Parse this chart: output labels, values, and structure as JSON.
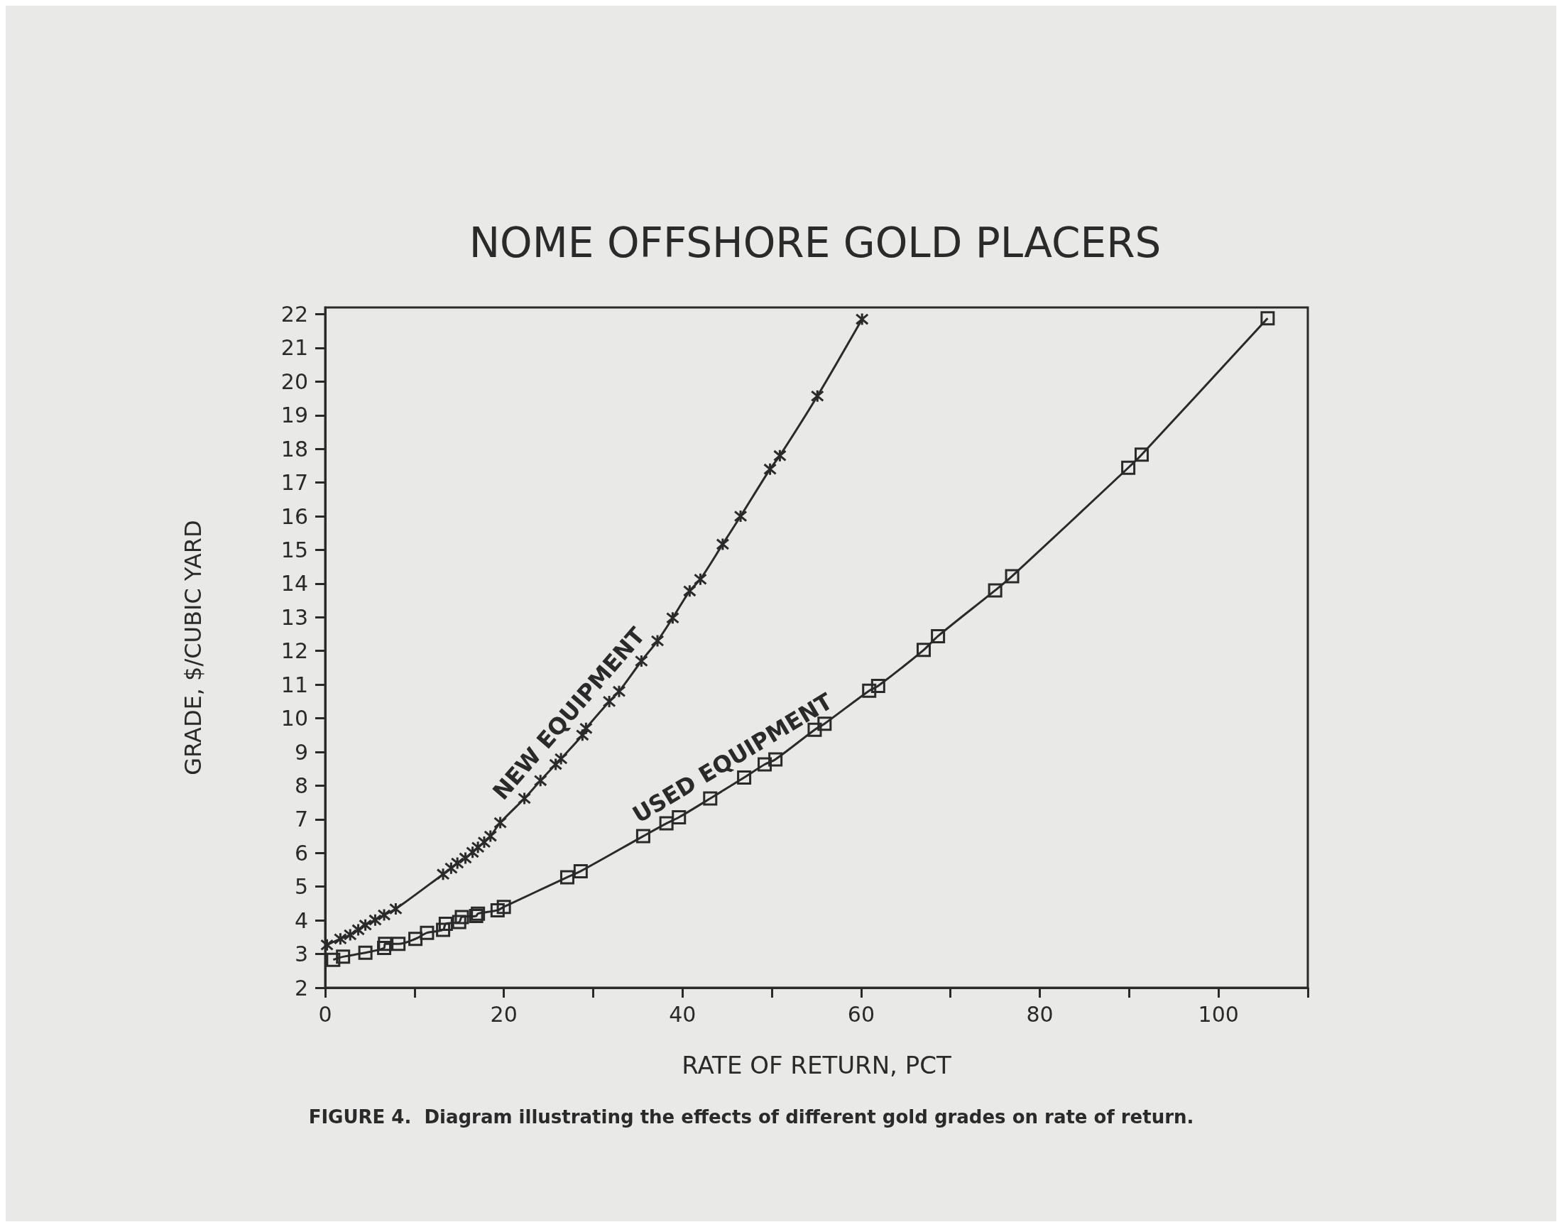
{
  "chart_data": {
    "type": "line",
    "title": "NOME OFFSHORE GOLD PLACERS",
    "xlabel": "RATE OF RETURN, PCT",
    "ylabel": "GRADE, $/CUBIC YARD",
    "annotations": [
      "FIGURE 4.  Diagram illustrating the effects of different gold grades on rate of return."
    ],
    "xlim": [
      0,
      110
    ],
    "xticks": [
      0,
      {
        "value": 10,
        "label": null
      },
      20,
      {
        "value": 30,
        "label": null
      },
      40,
      {
        "value": 50,
        "label": null
      },
      60,
      {
        "value": 70,
        "label": null
      },
      80,
      {
        "value": 90,
        "label": null
      },
      100,
      {
        "value": 110,
        "label": null
      }
    ],
    "ylim": [
      2,
      22.2
    ],
    "yticks": [
      2,
      3,
      4,
      5,
      6,
      7,
      8,
      9,
      10,
      11,
      12,
      13,
      14,
      15,
      16,
      17,
      18,
      19,
      20,
      21,
      22
    ],
    "grid": false,
    "legend": false,
    "line_style": "solid",
    "series": [
      {
        "name": "NEW EQUIPMENT",
        "color": "#2a2a2a",
        "marker": "cross",
        "x": [
          0.2,
          1.7,
          2.8,
          3.7,
          4.5,
          5.6,
          6.6,
          7.9,
          13.2,
          14.1,
          14.8,
          15.7,
          16.5,
          17.1,
          17.8,
          18.5,
          19.6,
          22.3,
          24.1,
          25.8,
          26.4,
          28.8,
          29.2,
          31.8,
          32.9,
          35.4,
          37.2,
          38.9,
          40.8,
          42.0,
          44.5,
          46.5,
          49.8,
          50.9,
          55.1,
          60.1
        ],
        "values": [
          3.27,
          3.45,
          3.57,
          3.72,
          3.86,
          4.01,
          4.16,
          4.34,
          5.37,
          5.55,
          5.7,
          5.85,
          6.02,
          6.17,
          6.32,
          6.5,
          6.9,
          7.62,
          8.15,
          8.63,
          8.8,
          9.5,
          9.7,
          10.5,
          10.8,
          11.7,
          12.3,
          12.98,
          13.78,
          14.13,
          15.17,
          16.0,
          17.4,
          17.8,
          19.57,
          21.85
        ]
      },
      {
        "name": "USED EQUIPMENT",
        "color": "#2a2a2a",
        "marker": "square",
        "x": [
          0.9,
          2.0,
          4.5,
          6.6,
          6.7,
          8.2,
          10.1,
          11.4,
          13.2,
          13.5,
          15.0,
          15.3,
          16.9,
          17.1,
          19.3,
          20.0,
          27.1,
          28.6,
          35.6,
          38.2,
          39.6,
          43.1,
          46.9,
          49.2,
          50.4,
          54.8,
          55.9,
          60.9,
          61.9,
          67.0,
          68.6,
          75.0,
          76.9,
          89.9,
          91.4,
          105.5
        ],
        "values": [
          2.83,
          2.92,
          3.04,
          3.18,
          3.3,
          3.3,
          3.45,
          3.63,
          3.72,
          3.9,
          3.95,
          4.1,
          4.13,
          4.2,
          4.3,
          4.4,
          5.28,
          5.46,
          6.5,
          6.88,
          7.06,
          7.62,
          8.24,
          8.63,
          8.78,
          9.66,
          9.84,
          10.82,
          10.96,
          12.03,
          12.44,
          13.8,
          14.22,
          17.44,
          17.83,
          21.88
        ]
      }
    ]
  }
}
